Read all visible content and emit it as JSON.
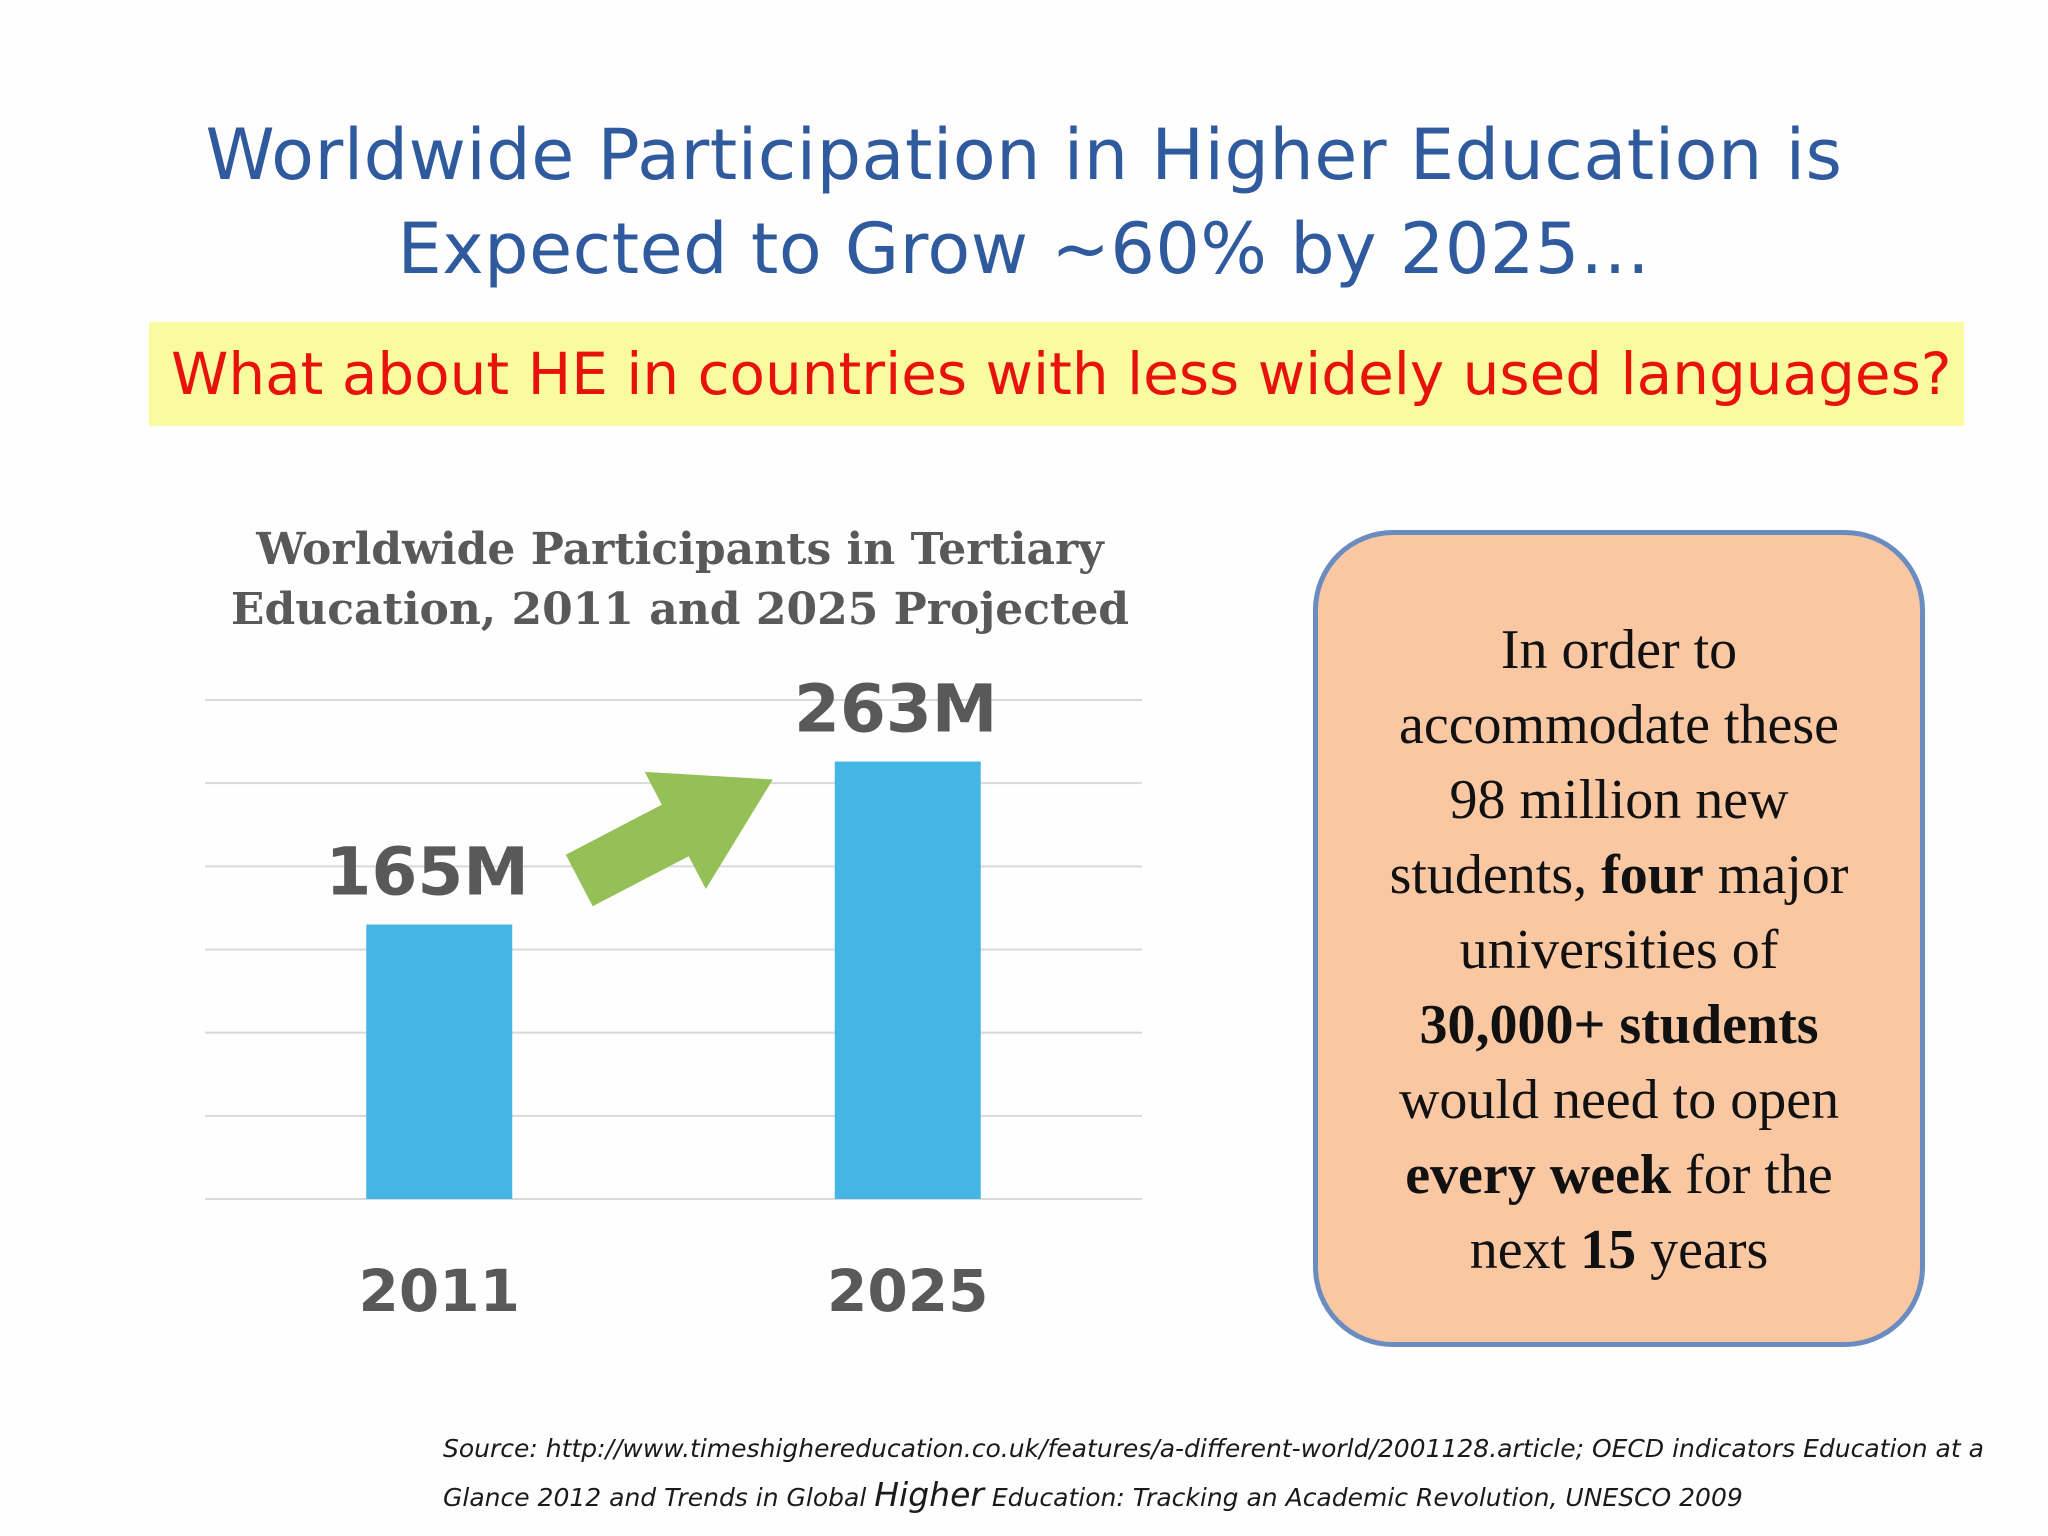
{
  "slide": {
    "title_line1": "Worldwide Participation in Higher Education is",
    "title_line2": "Expected to Grow ~60% by 2025…",
    "question": "What about HE in countries with less widely used languages?"
  },
  "callout": {
    "text_1": "In order to",
    "text_2": "accommodate these",
    "text_3": "98 million new",
    "text_4": "students, ",
    "text_4_bold": "four",
    "text_4_end": " major",
    "text_5": "universities of",
    "text_6_bold": "30,000+ students",
    "text_7": "would need to open",
    "text_8_bold": "every week",
    "text_8_end": " for the",
    "text_9": "next ",
    "text_9_bold": "15",
    "text_9_end": " years"
  },
  "source": {
    "line1": "Source: http://www.timeshighereducation.co.uk/features/a-different-world/2001128.article; OECD indicators Education at a",
    "line2_a": "Glance 2012 and Trends in Global ",
    "line2_b": "Higher",
    "line2_c": " Education: Tracking an Academic Revolution, UNESCO 2009"
  },
  "colors": {
    "title": "#2f5a9e",
    "question_text": "#e8120c",
    "question_band": "#fafa9e",
    "bar": "#45b5e3",
    "arrow": "#95bf57",
    "callout_fill": "#f9c8a2",
    "callout_border": "#6b8cc0",
    "gridline": "#d9d9d9",
    "label": "#595959"
  },
  "chart_data": {
    "type": "bar",
    "title": "Worldwide Participants in Tertiary Education, 2011 and 2025 Projected",
    "categories": [
      "2011",
      "2025"
    ],
    "values": [
      165,
      263
    ],
    "data_labels": [
      "165M",
      "263M"
    ],
    "units": "M",
    "ylim": [
      0,
      300
    ],
    "grid": true,
    "legend": "none",
    "annotation": "growth-arrow"
  }
}
